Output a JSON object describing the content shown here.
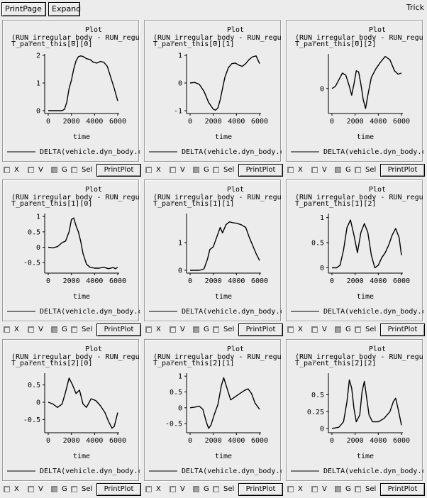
{
  "toolbar": {
    "print_page_label": "PrintPage",
    "expand_label": "Expand",
    "app_title": "Trick"
  },
  "controls": {
    "x_label": "X",
    "v_label": "V",
    "g_label": "G",
    "sel_label": "Sel",
    "print_plot_label": "PrintPlot",
    "x_checked": false,
    "v_checked": false,
    "g_checked": true,
    "sel_checked": false
  },
  "plots": [
    {
      "title": "Plot",
      "subtitle_1": "(RUN_irregular_body - RUN_regul",
      "subtitle_2": "T_parent_this[0][0]",
      "xlabel": "time",
      "legend": "DELTA(vehicle.dyn_body.c",
      "chart_data": {
        "type": "line",
        "xlim": [
          0,
          6000
        ],
        "ylim": [
          0,
          2
        ],
        "xticks": [
          0,
          2000,
          4000,
          6000
        ],
        "yticks": [
          0,
          1,
          2
        ],
        "x": [
          0,
          1200,
          1400,
          1600,
          1800,
          2000,
          2200,
          2400,
          2600,
          2800,
          3000,
          3300,
          3600,
          3900,
          4200,
          4500,
          4800,
          5100,
          5400,
          5700,
          6000
        ],
        "y": [
          0,
          0,
          0.05,
          0.3,
          0.8,
          1.1,
          1.5,
          1.8,
          1.95,
          1.98,
          1.96,
          1.88,
          1.85,
          1.75,
          1.72,
          1.78,
          1.75,
          1.6,
          1.2,
          0.8,
          0.35
        ]
      }
    },
    {
      "title": "Plot",
      "subtitle_1": "(RUN_irregular_body - RUN_regul",
      "subtitle_2": "T_parent_this[0][1]",
      "xlabel": "time",
      "legend": "DELTA(vehicle.dyn_body.c",
      "chart_data": {
        "type": "line",
        "xlim": [
          0,
          6000
        ],
        "ylim": [
          -1,
          1
        ],
        "xticks": [
          0,
          2000,
          4000,
          6000
        ],
        "yticks": [
          -1,
          0,
          1
        ],
        "x": [
          0,
          400,
          800,
          1200,
          1600,
          2000,
          2200,
          2400,
          2600,
          2800,
          3000,
          3300,
          3600,
          3900,
          4200,
          4500,
          4800,
          5100,
          5400,
          5700,
          6000
        ],
        "y": [
          0,
          0.02,
          -0.05,
          -0.3,
          -0.7,
          -0.95,
          -0.98,
          -0.9,
          -0.6,
          -0.2,
          0.2,
          0.55,
          0.7,
          0.72,
          0.65,
          0.6,
          0.7,
          0.85,
          0.95,
          0.98,
          0.7
        ]
      }
    },
    {
      "title": "Plot",
      "subtitle_1": "(RUN_irregular_body - RUN_regul",
      "subtitle_2": "T_parent_this[0][2]",
      "xlabel": "time",
      "legend": "DELTA(vehicle.dyn_body.c",
      "chart_data": {
        "type": "line",
        "xlim": [
          0,
          6000
        ],
        "ylim": [
          -1,
          1.5
        ],
        "xticks": [
          0,
          2000,
          4000,
          6000
        ],
        "yticks": [
          0
        ],
        "x": [
          0,
          300,
          600,
          900,
          1200,
          1500,
          1700,
          1900,
          2100,
          2300,
          2500,
          2700,
          2900,
          3100,
          3400,
          3800,
          4200,
          4600,
          5000,
          5400,
          5700,
          6000
        ],
        "y": [
          0,
          0.1,
          0.4,
          0.7,
          0.6,
          0.1,
          -0.3,
          0.2,
          0.8,
          0.75,
          0.2,
          -0.5,
          -0.9,
          -0.3,
          0.5,
          0.9,
          1.2,
          1.45,
          1.3,
          0.8,
          0.65,
          0.7
        ]
      }
    },
    {
      "title": "Plot",
      "subtitle_1": "(RUN_irregular_body - RUN_regul",
      "subtitle_2": "T_parent_this[1][0]",
      "xlabel": "time",
      "legend": "DELTA(vehicle.dyn_body.c",
      "chart_data": {
        "type": "line",
        "xlim": [
          0,
          6000
        ],
        "ylim": [
          -0.75,
          1.05
        ],
        "xticks": [
          0,
          2000,
          4000,
          6000
        ],
        "yticks": [
          -0.5,
          0,
          0.5,
          1
        ],
        "x": [
          0,
          400,
          800,
          1200,
          1500,
          1800,
          2000,
          2200,
          2400,
          2600,
          2800,
          3000,
          3300,
          3600,
          4000,
          4400,
          4800,
          5200,
          5600,
          5800,
          6000
        ],
        "y": [
          0,
          -0.02,
          0.02,
          0.15,
          0.2,
          0.5,
          0.9,
          0.95,
          0.7,
          0.5,
          0.2,
          -0.2,
          -0.55,
          -0.65,
          -0.68,
          -0.68,
          -0.65,
          -0.7,
          -0.66,
          -0.7,
          -0.65
        ]
      }
    },
    {
      "title": "Plot",
      "subtitle_1": "(RUN_irregular_body - RUN_regul",
      "subtitle_2": "T_parent_this[1][1]",
      "xlabel": "time",
      "legend": "DELTA(vehicle.dyn_body.c",
      "chart_data": {
        "type": "line",
        "xlim": [
          0,
          6000
        ],
        "ylim": [
          0,
          2
        ],
        "xticks": [
          0,
          2000,
          4000,
          6000
        ],
        "yticks": [
          0,
          1
        ],
        "x": [
          0,
          800,
          1200,
          1500,
          1700,
          2000,
          2300,
          2600,
          2800,
          3100,
          3400,
          3700,
          4000,
          4400,
          4800,
          5100,
          5400,
          5700,
          6000
        ],
        "y": [
          0,
          0,
          0.05,
          0.4,
          0.75,
          0.85,
          1.2,
          1.55,
          1.35,
          1.65,
          1.75,
          1.72,
          1.7,
          1.65,
          1.55,
          1.2,
          0.9,
          0.6,
          0.35
        ]
      }
    },
    {
      "title": "Plot",
      "subtitle_1": "(RUN_irregular_body - RUN_regul",
      "subtitle_2": "T_parent_this[1][2]",
      "xlabel": "time",
      "legend": "DELTA(vehicle.dyn_body.c",
      "chart_data": {
        "type": "line",
        "xlim": [
          0,
          6000
        ],
        "ylim": [
          -0.05,
          1.05
        ],
        "xticks": [
          0,
          2000,
          4000,
          6000
        ],
        "yticks": [
          0,
          0.5,
          1
        ],
        "x": [
          0,
          400,
          700,
          1000,
          1300,
          1600,
          1900,
          2200,
          2500,
          2800,
          3100,
          3400,
          3700,
          4000,
          4300,
          4600,
          4900,
          5200,
          5500,
          5800,
          6000
        ],
        "y": [
          0,
          0,
          0.05,
          0.35,
          0.8,
          0.95,
          0.65,
          0.3,
          0.7,
          0.88,
          0.7,
          0.25,
          0.0,
          0.05,
          0.2,
          0.3,
          0.45,
          0.65,
          0.78,
          0.6,
          0.25
        ]
      }
    },
    {
      "title": "Plot",
      "subtitle_1": "(RUN_irregular_body - RUN_regul",
      "subtitle_2": "T_parent_this[2][0]",
      "xlabel": "time",
      "legend": "DELTA(vehicle.dyn_body.c",
      "chart_data": {
        "type": "line",
        "xlim": [
          0,
          6000
        ],
        "ylim": [
          -0.8,
          0.8
        ],
        "xticks": [
          0,
          2000,
          4000,
          6000
        ],
        "yticks": [
          -0.5,
          0,
          0.5
        ],
        "x": [
          0,
          400,
          800,
          1200,
          1500,
          1800,
          2100,
          2400,
          2700,
          3000,
          3300,
          3700,
          4100,
          4500,
          4900,
          5200,
          5500,
          5700,
          6000
        ],
        "y": [
          0,
          -0.05,
          -0.15,
          -0.05,
          0.3,
          0.7,
          0.5,
          0.25,
          0.35,
          -0.05,
          -0.15,
          0.1,
          0.05,
          -0.1,
          -0.3,
          -0.55,
          -0.75,
          -0.7,
          -0.3
        ]
      }
    },
    {
      "title": "Plot",
      "subtitle_1": "(RUN_irregular_body - RUN_regul",
      "subtitle_2": "T_parent_this[2][1]",
      "xlabel": "time",
      "legend": "DELTA(vehicle.dyn_body.c",
      "chart_data": {
        "type": "line",
        "xlim": [
          0,
          6000
        ],
        "ylim": [
          -0.7,
          1.05
        ],
        "xticks": [
          0,
          2000,
          4000,
          6000
        ],
        "yticks": [
          -0.5,
          0,
          0.5,
          1
        ],
        "x": [
          0,
          400,
          800,
          1100,
          1400,
          1600,
          1800,
          2100,
          2400,
          2700,
          2900,
          3200,
          3500,
          3900,
          4300,
          4700,
          5000,
          5300,
          5600,
          6000
        ],
        "y": [
          0,
          0.02,
          0.05,
          -0.05,
          -0.45,
          -0.65,
          -0.55,
          -0.2,
          0.1,
          0.7,
          0.95,
          0.6,
          0.25,
          0.35,
          0.45,
          0.55,
          0.6,
          0.45,
          0.15,
          -0.05
        ]
      }
    },
    {
      "title": "Plot",
      "subtitle_1": "(RUN_irregular_body - RUN_regul",
      "subtitle_2": "T_parent_this[2][2]",
      "xlabel": "time",
      "legend": "DELTA(vehicle.dyn_body.c",
      "chart_data": {
        "type": "line",
        "xlim": [
          0,
          6000
        ],
        "ylim": [
          -0.02,
          0.8
        ],
        "xticks": [
          0,
          2000,
          4000,
          6000
        ],
        "yticks": [
          0,
          0.25,
          0.5
        ],
        "x": [
          0,
          600,
          1000,
          1300,
          1500,
          1700,
          1900,
          2100,
          2400,
          2600,
          2800,
          3000,
          3200,
          3500,
          4000,
          4500,
          5000,
          5300,
          5500,
          5700,
          6000
        ],
        "y": [
          0,
          0.02,
          0.1,
          0.4,
          0.72,
          0.6,
          0.3,
          0.1,
          0.2,
          0.55,
          0.7,
          0.45,
          0.2,
          0.1,
          0.1,
          0.15,
          0.25,
          0.4,
          0.45,
          0.3,
          0.05
        ]
      }
    }
  ]
}
